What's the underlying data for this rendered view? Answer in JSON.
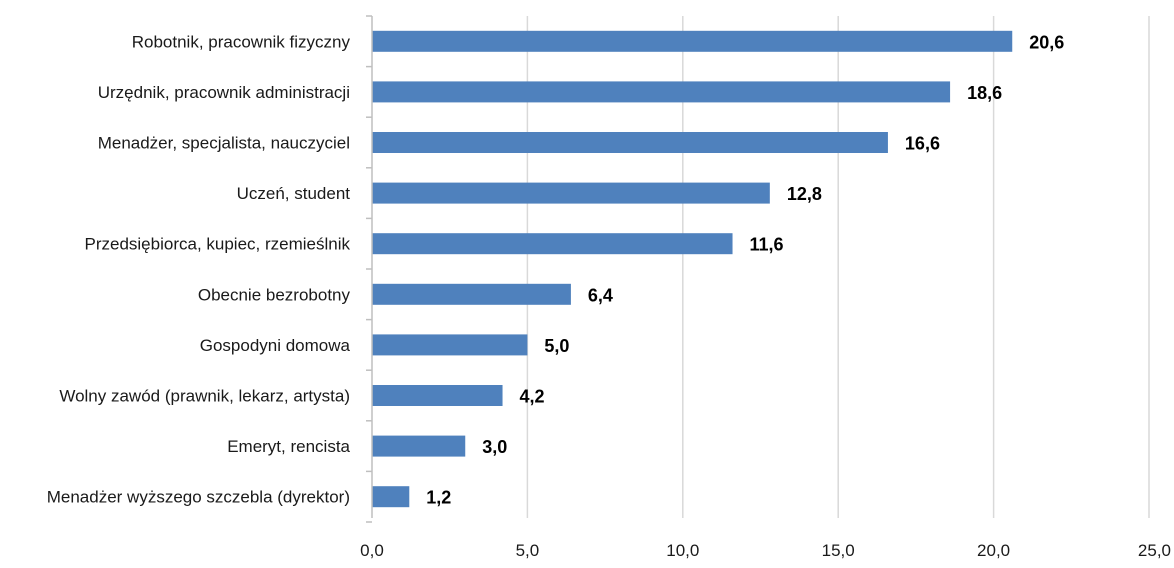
{
  "chart_data": {
    "type": "bar",
    "orientation": "horizontal",
    "categories": [
      "Robotnik, pracownik fizyczny",
      "Urzędnik, pracownik administracji",
      "Menadżer, specjalista, nauczyciel",
      "Uczeń, student",
      "Przedsiębiorca, kupiec, rzemieślnik",
      "Obecnie bezrobotny",
      "Gospodyni domowa",
      "Wolny zawód (prawnik, lekarz, artysta)",
      "Emeryt, rencista",
      "Menadżer wyższego szczebla (dyrektor)"
    ],
    "values": [
      20.6,
      18.6,
      16.6,
      12.8,
      11.6,
      6.4,
      5.0,
      4.2,
      3.0,
      1.2
    ],
    "value_labels": [
      "20,6",
      "18,6",
      "16,6",
      "12,8",
      "11,6",
      "6,4",
      "5,0",
      "4,2",
      "3,0",
      "1,2"
    ],
    "xlim": [
      0,
      25
    ],
    "ticks": [
      0,
      5,
      10,
      15,
      20,
      25
    ],
    "tick_labels": [
      "0,0",
      "5,0",
      "10,0",
      "15,0",
      "20,0",
      "25,0"
    ],
    "grid": true,
    "legend": "none",
    "title": "",
    "xlabel": "",
    "ylabel": "",
    "bar_color": "#4f81bd",
    "grid_color": "#d9d9d9",
    "axis_color": "#bfbfbf"
  }
}
